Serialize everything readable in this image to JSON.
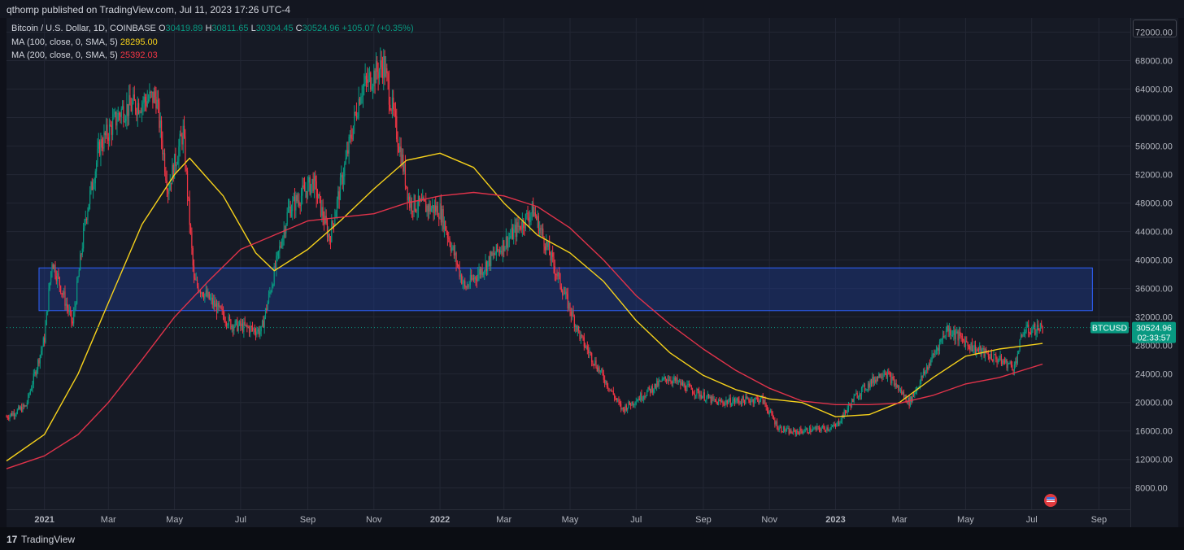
{
  "header": {
    "published": "qthomp published on TradingView.com, Jul 11, 2023 17:26 UTC-4"
  },
  "legend": {
    "title": "Bitcoin / U.S. Dollar, 1D, COINBASE",
    "o_label": "O",
    "o": "30419.89",
    "h_label": "H",
    "h": "30811.65",
    "l_label": "L",
    "l": "30304.45",
    "c_label": "C",
    "c": "30524.96",
    "change": "+105.07 (+0.35%)",
    "ma100_label": "MA (100, close, 0, SMA, 5)",
    "ma100_value": "28295.00",
    "ma200_label": "MA (200, close, 0, SMA, 5)",
    "ma200_value": "25392.03"
  },
  "price_tag": {
    "symbol": "BTCUSD",
    "price": "30524.96",
    "countdown": "02:33:57"
  },
  "footer": {
    "brand": "TradingView",
    "logo": "tradingview-logo-icon"
  },
  "colors": {
    "up": "#089981",
    "down": "#f23645",
    "ma100": "#f7d21b",
    "ma200": "#e0334a",
    "zone": "#1c3a8a"
  },
  "chart_data": {
    "type": "line",
    "title": "Bitcoin / U.S. Dollar, 1D, COINBASE",
    "y_ticks": [
      "8000.00",
      "12000.00",
      "16000.00",
      "20000.00",
      "24000.00",
      "28000.00",
      "32000.00",
      "36000.00",
      "40000.00",
      "44000.00",
      "48000.00",
      "52000.00",
      "56000.00",
      "60000.00",
      "64000.00",
      "68000.00",
      "72000.00"
    ],
    "x_ticks": [
      "2021",
      "Mar",
      "May",
      "Jul",
      "Sep",
      "Nov",
      "2022",
      "Mar",
      "May",
      "Jul",
      "Sep",
      "Nov",
      "2023",
      "Mar",
      "May",
      "Jul",
      "Sep"
    ],
    "ylim": [
      5000,
      74000
    ],
    "xlim": [
      "2020-11-27",
      "2023-09-30"
    ],
    "grid": true,
    "zone": {
      "x": [
        "2020-12-27",
        "2023-08-26"
      ],
      "y": [
        32900,
        38900
      ]
    },
    "current_price": 30524.96,
    "series": [
      {
        "name": "BTCUSD",
        "x": [
          "2020-11-27",
          "2020-12-15",
          "2021-01-01",
          "2021-01-08",
          "2021-01-27",
          "2021-02-08",
          "2021-02-21",
          "2021-03-13",
          "2021-04-14",
          "2021-04-25",
          "2021-05-09",
          "2021-05-19",
          "2021-06-22",
          "2021-07-20",
          "2021-08-14",
          "2021-09-06",
          "2021-09-21",
          "2021-10-20",
          "2021-11-10",
          "2021-11-27",
          "2021-12-04",
          "2022-01-01",
          "2022-01-24",
          "2022-03-28",
          "2022-05-11",
          "2022-06-18",
          "2022-07-30",
          "2022-09-13",
          "2022-10-25",
          "2022-11-09",
          "2022-11-21",
          "2023-01-01",
          "2023-01-20",
          "2023-02-15",
          "2023-03-10",
          "2023-04-14",
          "2023-05-10",
          "2023-06-15",
          "2023-06-23",
          "2023-07-11"
        ],
        "y": [
          18000,
          19500,
          29000,
          40000,
          31000,
          46000,
          56000,
          61000,
          63000,
          50000,
          58000,
          37000,
          31000,
          30000,
          47000,
          51000,
          43000,
          64000,
          67500,
          54000,
          48000,
          47000,
          36000,
          47000,
          29000,
          19000,
          23500,
          20000,
          20500,
          16500,
          15800,
          16600,
          21000,
          24500,
          20000,
          30400,
          27500,
          25000,
          30000,
          30524.96
        ]
      },
      {
        "name": "MA (100, close, 0, SMA, 5)",
        "x": [
          "2020-11-27",
          "2021-01-01",
          "2021-02-01",
          "2021-03-01",
          "2021-04-01",
          "2021-05-01",
          "2021-05-15",
          "2021-06-15",
          "2021-07-15",
          "2021-08-01",
          "2021-09-01",
          "2021-10-01",
          "2021-11-01",
          "2021-12-01",
          "2022-01-01",
          "2022-02-01",
          "2022-03-01",
          "2022-04-01",
          "2022-05-01",
          "2022-06-01",
          "2022-07-01",
          "2022-08-01",
          "2022-09-01",
          "2022-10-01",
          "2022-11-01",
          "2022-12-01",
          "2023-01-01",
          "2023-02-01",
          "2023-03-01",
          "2023-04-01",
          "2023-05-01",
          "2023-06-01",
          "2023-07-11"
        ],
        "y": [
          11800,
          15500,
          24000,
          34000,
          45000,
          52000,
          54300,
          49000,
          41000,
          38500,
          41500,
          45500,
          50000,
          54000,
          55000,
          53000,
          48000,
          43500,
          41000,
          37000,
          31500,
          27000,
          23800,
          21800,
          20500,
          20000,
          18000,
          18300,
          20000,
          23500,
          26500,
          27500,
          28295
        ]
      },
      {
        "name": "MA (200, close, 0, SMA, 5)",
        "x": [
          "2020-11-27",
          "2021-01-01",
          "2021-02-01",
          "2021-03-01",
          "2021-04-01",
          "2021-05-01",
          "2021-06-01",
          "2021-07-01",
          "2021-08-01",
          "2021-09-01",
          "2021-10-01",
          "2021-11-01",
          "2021-12-01",
          "2022-01-01",
          "2022-02-01",
          "2022-03-01",
          "2022-04-01",
          "2022-05-01",
          "2022-06-01",
          "2022-07-01",
          "2022-08-01",
          "2022-09-01",
          "2022-10-01",
          "2022-11-01",
          "2022-12-01",
          "2023-01-01",
          "2023-02-01",
          "2023-03-01",
          "2023-04-01",
          "2023-05-01",
          "2023-06-01",
          "2023-07-11"
        ],
        "y": [
          10700,
          12500,
          15500,
          20000,
          26000,
          32000,
          37000,
          41500,
          43500,
          45500,
          46000,
          46500,
          48000,
          49000,
          49500,
          49000,
          47500,
          44500,
          40000,
          35000,
          31000,
          27500,
          24500,
          22000,
          20200,
          19700,
          19700,
          19900,
          21000,
          22600,
          23500,
          25392.03
        ]
      }
    ]
  }
}
